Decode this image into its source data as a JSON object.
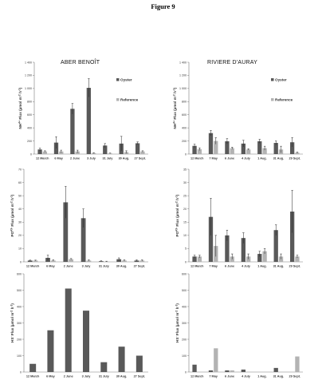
{
  "figure_title": "Figure 9",
  "columns": [
    "ABER BENOÎT",
    "RIVIERE D'AURAY"
  ],
  "colors": {
    "oyster": "#595959",
    "reference": "#b3b3b3",
    "axis": "#7a7a7a",
    "text": "#333333"
  },
  "chart_data": [
    {
      "id": "aber-nh4",
      "type": "bar",
      "ylabel": "NH4+ Flux (µmol m-2 h-1)",
      "ylim": [
        0,
        1400
      ],
      "ticks": [
        0,
        200,
        400,
        600,
        800,
        1000,
        1200,
        1400
      ],
      "categories": [
        "12 March",
        "6 May",
        "2 June",
        "3 July",
        "31 July",
        "30 Aug.",
        "27 Sept."
      ],
      "legend": [
        "Oyster",
        "Reference"
      ],
      "series": [
        {
          "name": "Oyster",
          "values": [
            70,
            175,
            690,
            1010,
            130,
            160,
            165
          ],
          "errors": [
            20,
            90,
            80,
            140,
            30,
            110,
            20
          ]
        },
        {
          "name": "Reference",
          "values": [
            40,
            40,
            40,
            15,
            10,
            30,
            40
          ],
          "errors": [
            10,
            20,
            20,
            5,
            5,
            20,
            10
          ]
        }
      ]
    },
    {
      "id": "auray-nh4",
      "type": "bar",
      "ylabel": "NH4+ Flux (µmol m-2 h-1)",
      "ylim": [
        0,
        1400
      ],
      "ticks": [
        0,
        200,
        400,
        600,
        800,
        1000,
        1200,
        1400
      ],
      "categories": [
        "12 March",
        "7 May",
        "6 June",
        "4 July",
        "1 Aug.",
        "31 Aug.",
        "29 Sept."
      ],
      "legend": [
        "Oyster",
        "Reference"
      ],
      "series": [
        {
          "name": "Oyster",
          "values": [
            125,
            320,
            195,
            160,
            195,
            170,
            180
          ],
          "errors": [
            25,
            40,
            40,
            50,
            30,
            30,
            70
          ]
        },
        {
          "name": "Reference",
          "values": [
            75,
            200,
            90,
            70,
            90,
            70,
            20
          ],
          "errors": [
            20,
            50,
            15,
            10,
            30,
            50,
            10
          ]
        }
      ]
    },
    {
      "id": "aber-po4",
      "type": "bar",
      "ylabel": "PO43- Flux (µmol m-2 h-1)",
      "ylim": [
        0,
        70
      ],
      "ticks": [
        0,
        10,
        20,
        30,
        40,
        50,
        60,
        70
      ],
      "categories": [
        "12 March",
        "6 May",
        "2 June",
        "3 July",
        "31 July",
        "30 Aug.",
        "27 Sept."
      ],
      "series": [
        {
          "name": "Oyster",
          "values": [
            1,
            3,
            45,
            33,
            0.5,
            2,
            1
          ],
          "errors": [
            0.3,
            2,
            12,
            7,
            0.3,
            1,
            0.5
          ]
        },
        {
          "name": "Reference",
          "values": [
            1,
            1,
            2,
            1,
            0.3,
            1,
            1
          ],
          "errors": [
            0.3,
            0.5,
            0.5,
            0.5,
            0.2,
            0.5,
            0.5
          ]
        }
      ]
    },
    {
      "id": "auray-po4",
      "type": "bar",
      "ylabel": "PO43- Flux (µmol m-2 h-1)",
      "ylim": [
        0,
        35
      ],
      "ticks": [
        0,
        5,
        10,
        15,
        20,
        25,
        30,
        35
      ],
      "categories": [
        "12 March",
        "7 May",
        "6 June",
        "4 July",
        "1 Aug.",
        "31 Aug.",
        "29 Sept."
      ],
      "series": [
        {
          "name": "Oyster",
          "values": [
            2,
            17,
            10,
            9,
            3,
            12,
            19
          ],
          "errors": [
            0.5,
            7,
            2,
            2,
            1,
            2,
            8
          ]
        },
        {
          "name": "Reference",
          "values": [
            2,
            6,
            2,
            2,
            4,
            2,
            2
          ],
          "errors": [
            0.5,
            4,
            1,
            1,
            1,
            1,
            0.5
          ]
        }
      ]
    },
    {
      "id": "aber-hs",
      "type": "bar",
      "ylabel": "HS- Flux (µmol m-2 h-1)",
      "ylim": [
        0,
        600
      ],
      "ticks": [
        0,
        100,
        200,
        300,
        400,
        500,
        600
      ],
      "categories": [
        "12 March",
        "6 May",
        "2 June",
        "3 July",
        "31 July",
        "30 Aug.",
        "27 Sept."
      ],
      "series": [
        {
          "name": "Oyster",
          "values": [
            50,
            255,
            510,
            375,
            60,
            155,
            100
          ]
        }
      ]
    },
    {
      "id": "auray-hs",
      "type": "bar",
      "ylabel": "HS- Flux (µmol m-2 h-1)",
      "ylim": [
        0,
        600
      ],
      "ticks": [
        0,
        100,
        200,
        300,
        400,
        500,
        600
      ],
      "categories": [
        "12 March",
        "7 May",
        "6 June",
        "4 July",
        "1 Aug.",
        "31 Aug.",
        "29 Sept."
      ],
      "series": [
        {
          "name": "Oyster",
          "values": [
            45,
            10,
            10,
            15,
            0,
            25,
            0
          ]
        },
        {
          "name": "Reference",
          "values": [
            0,
            145,
            10,
            0,
            0,
            0,
            95
          ]
        }
      ]
    }
  ]
}
